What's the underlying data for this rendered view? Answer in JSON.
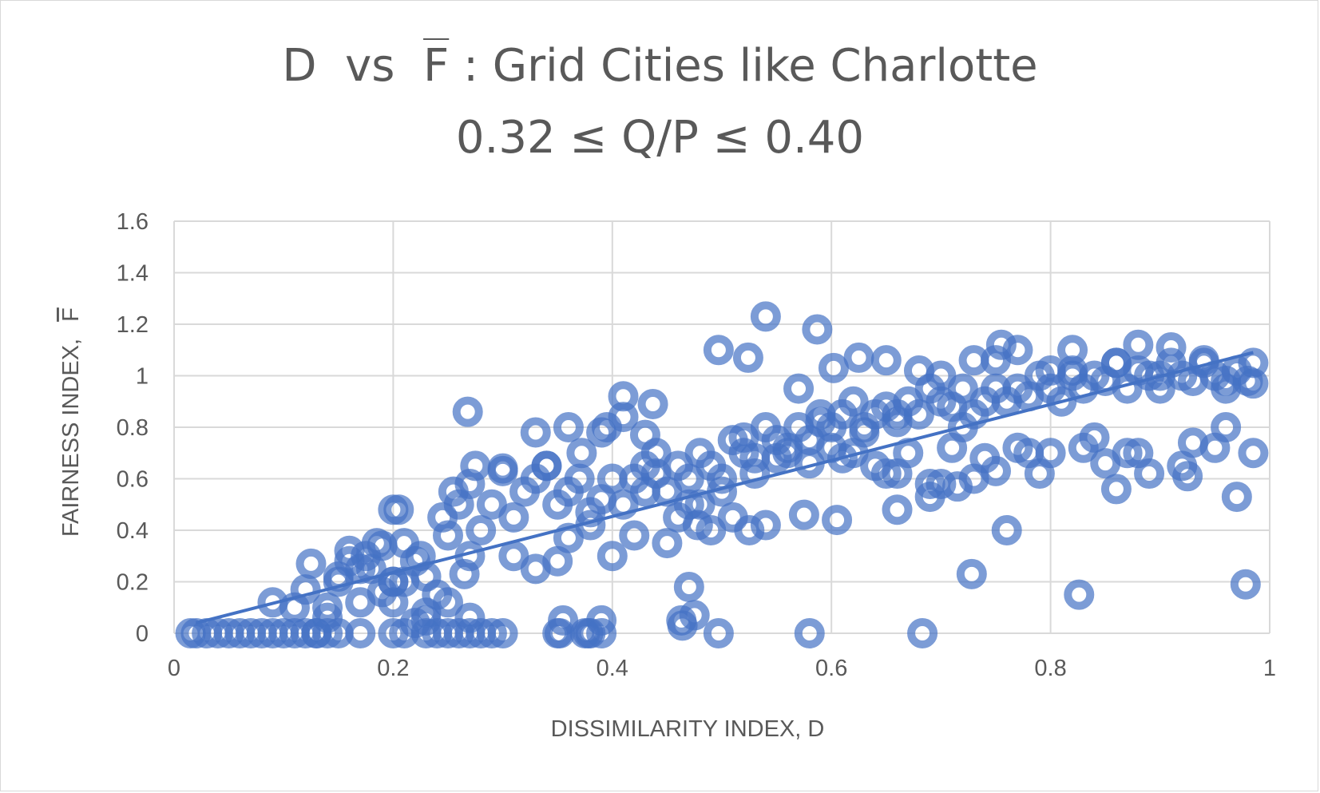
{
  "chart_data": {
    "type": "scatter",
    "title_line1": {
      "a": "D",
      "b": "vs",
      "c": "F",
      "d": ": Grid Cities like Charlotte"
    },
    "title_line2": "0.32 ≤ Q/P ≤ 0.40",
    "xlabel": "DISSIMILARITY INDEX, D",
    "ylabel_text": "FAIRNESS INDEX,",
    "ylabel_symbol": "F",
    "xlim": [
      0,
      1
    ],
    "ylim": [
      0,
      1.6
    ],
    "x_ticks": [
      "0",
      "0.2",
      "0.4",
      "0.6",
      "0.8",
      "1"
    ],
    "y_ticks": [
      "0",
      "0.2",
      "0.4",
      "0.6",
      "0.8",
      "1",
      "1.2",
      "1.4",
      "1.6"
    ],
    "grid": true,
    "marker_color": "#4472c4",
    "trendline": {
      "type": "linear",
      "x": [
        0.02,
        0.985
      ],
      "y": [
        0.04,
        1.09
      ]
    },
    "series": [
      {
        "name": "F",
        "x": [
          0.015,
          0.02,
          0.03,
          0.04,
          0.05,
          0.06,
          0.07,
          0.08,
          0.09,
          0.1,
          0.11,
          0.12,
          0.13,
          0.14,
          0.15,
          0.17,
          0.2,
          0.23,
          0.24,
          0.25,
          0.26,
          0.27,
          0.28,
          0.3,
          0.35,
          0.38,
          0.09,
          0.11,
          0.12,
          0.125,
          0.14,
          0.15,
          0.16,
          0.17,
          0.18,
          0.19,
          0.2,
          0.21,
          0.22,
          0.23,
          0.16,
          0.175,
          0.185,
          0.2,
          0.205,
          0.21,
          0.225,
          0.23,
          0.24,
          0.25,
          0.245,
          0.255,
          0.26,
          0.265,
          0.27,
          0.275,
          0.28,
          0.29,
          0.3,
          0.31,
          0.32,
          0.33,
          0.34,
          0.35,
          0.36,
          0.37,
          0.38,
          0.39,
          0.4,
          0.41,
          0.42,
          0.43,
          0.44,
          0.45,
          0.46,
          0.47,
          0.48,
          0.49,
          0.5,
          0.51,
          0.52,
          0.53,
          0.54,
          0.55,
          0.56,
          0.57,
          0.58,
          0.59,
          0.6,
          0.61,
          0.62,
          0.63,
          0.64,
          0.65,
          0.66,
          0.67,
          0.68,
          0.69,
          0.7,
          0.71,
          0.72,
          0.73,
          0.74,
          0.75,
          0.76,
          0.77,
          0.78,
          0.79,
          0.8,
          0.81,
          0.82,
          0.83,
          0.84,
          0.85,
          0.86,
          0.87,
          0.88,
          0.89,
          0.9,
          0.91,
          0.92,
          0.93,
          0.94,
          0.95,
          0.96,
          0.97,
          0.98,
          0.985,
          0.268,
          0.2,
          0.54,
          0.587,
          0.497,
          0.524,
          0.602,
          0.625,
          0.41,
          0.437,
          0.395,
          0.36,
          0.33,
          0.3,
          0.34,
          0.372,
          0.39,
          0.41,
          0.43,
          0.33,
          0.35,
          0.27,
          0.31,
          0.355,
          0.375,
          0.39,
          0.47,
          0.464,
          0.478,
          0.525,
          0.575,
          0.605,
          0.66,
          0.69,
          0.715,
          0.76,
          0.86,
          0.89,
          0.925,
          0.97,
          0.985,
          0.728,
          0.826,
          0.978,
          0.755,
          0.77,
          0.82,
          0.88,
          0.91,
          0.94,
          0.96,
          0.985,
          0.7,
          0.73,
          0.8,
          0.86,
          0.9,
          0.65,
          0.68,
          0.75,
          0.82,
          0.57,
          0.59,
          0.63,
          0.66,
          0.72,
          0.77,
          0.84,
          0.55,
          0.6,
          0.64,
          0.67,
          0.71,
          0.74,
          0.79,
          0.85,
          0.88,
          0.93,
          0.96,
          0.52,
          0.56,
          0.61,
          0.65,
          0.69,
          0.73,
          0.78,
          0.83,
          0.87,
          0.92,
          0.95,
          0.48,
          0.5,
          0.53,
          0.58,
          0.62,
          0.66,
          0.7,
          0.75,
          0.8,
          0.45,
          0.49,
          0.51,
          0.54,
          0.44,
          0.47,
          0.43,
          0.46,
          0.4,
          0.42,
          0.38,
          0.36,
          0.497,
          0.58,
          0.683,
          0.475,
          0.463,
          0.352,
          0.378,
          0.39,
          0.23,
          0.25,
          0.29,
          0.27,
          0.21,
          0.22,
          0.2,
          0.19,
          0.17,
          0.15,
          0.13,
          0.14
        ],
        "y": [
          0,
          0,
          0,
          0,
          0,
          0,
          0,
          0,
          0,
          0,
          0,
          0,
          0,
          0,
          0,
          0,
          0,
          0,
          0,
          0,
          0,
          0,
          0,
          0,
          0,
          0,
          0.12,
          0.1,
          0.17,
          0.27,
          0.1,
          0.22,
          0.28,
          0.12,
          0.25,
          0.34,
          0.12,
          0.2,
          0.28,
          0.08,
          0.32,
          0.3,
          0.35,
          0.2,
          0.48,
          0.35,
          0.3,
          0.22,
          0.15,
          0.38,
          0.45,
          0.55,
          0.5,
          0.23,
          0.58,
          0.65,
          0.4,
          0.5,
          0.63,
          0.45,
          0.55,
          0.6,
          0.65,
          0.5,
          0.55,
          0.6,
          0.47,
          0.52,
          0.6,
          0.5,
          0.6,
          0.65,
          0.7,
          0.55,
          0.65,
          0.6,
          0.7,
          0.65,
          0.6,
          0.75,
          0.7,
          0.68,
          0.8,
          0.75,
          0.7,
          0.8,
          0.75,
          0.85,
          0.8,
          0.85,
          0.9,
          0.8,
          0.85,
          0.88,
          0.82,
          0.9,
          0.85,
          0.95,
          0.9,
          0.88,
          0.95,
          0.85,
          0.9,
          0.95,
          0.9,
          0.95,
          0.92,
          1.0,
          0.95,
          0.9,
          1.0,
          0.95,
          1.0,
          0.98,
          1.05,
          0.95,
          1.02,
          1.0,
          0.95,
          1.05,
          1.0,
          0.98,
          1.05,
          1.0,
          0.95,
          1.02,
          0.98,
          1.05,
          0.86,
          0.48,
          1.23,
          1.18,
          1.1,
          1.07,
          1.03,
          1.07,
          0.92,
          0.89,
          0.8,
          0.8,
          0.78,
          0.64,
          0.65,
          0.7,
          0.78,
          0.84,
          0.77,
          0.25,
          0.28,
          0.3,
          0.3,
          0.05,
          0.0,
          0.05,
          0.18,
          0.03,
          0.42,
          0.4,
          0.46,
          0.44,
          0.48,
          0.53,
          0.57,
          0.4,
          0.56,
          0.62,
          0.61,
          0.53,
          0.7,
          0.23,
          0.15,
          0.19,
          1.12,
          1.1,
          1.1,
          1.12,
          1.11,
          1.06,
          0.98,
          0.97,
          1.0,
          1.06,
          1.02,
          1.05,
          1.0,
          1.06,
          1.02,
          1.06,
          1.02,
          0.95,
          0.82,
          0.78,
          0.85,
          0.8,
          0.72,
          0.76,
          0.68,
          0.72,
          0.65,
          0.7,
          0.72,
          0.68,
          0.62,
          0.66,
          0.7,
          0.74,
          0.8,
          0.76,
          0.72,
          0.68,
          0.62,
          0.58,
          0.6,
          0.7,
          0.72,
          0.7,
          0.65,
          0.72,
          0.5,
          0.55,
          0.62,
          0.66,
          0.7,
          0.62,
          0.58,
          0.63,
          0.7,
          0.35,
          0.4,
          0.45,
          0.42,
          0.62,
          0.5,
          0.55,
          0.45,
          0.3,
          0.38,
          0.42,
          0.37,
          0.0,
          0.0,
          0.0,
          0.07,
          0.05,
          0.0,
          0.0,
          0.0,
          0.05,
          0.12,
          0.0,
          0.06,
          0.0,
          0.04,
          0.2,
          0.16,
          0.25,
          0.2,
          0.0,
          0.06
        ]
      }
    ]
  }
}
